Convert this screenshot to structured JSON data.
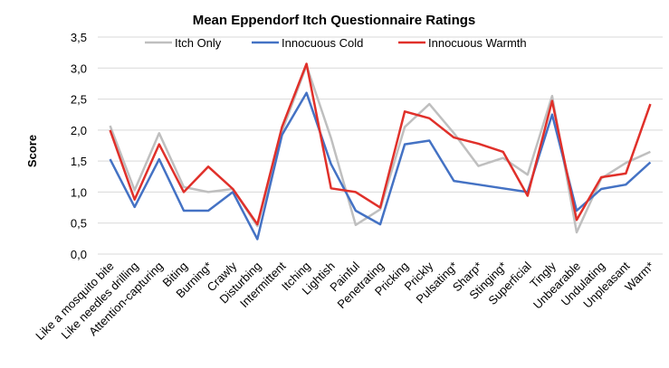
{
  "chart_data": {
    "type": "line",
    "title": "Mean Eppendorf Itch Questionnaire Ratings",
    "xlabel": "",
    "ylabel": "Score",
    "ylim": [
      0,
      3.5
    ],
    "yticks": [
      "0,0",
      "0,5",
      "1,0",
      "1,5",
      "2,0",
      "2,5",
      "3,0",
      "3,5"
    ],
    "ytick_values": [
      0,
      0.5,
      1,
      1.5,
      2,
      2.5,
      3,
      3.5
    ],
    "grid": true,
    "legend_position": "top",
    "categories": [
      "Like a mosquito bite",
      "Like needles drilling",
      "Attention-capturing",
      "Biting",
      "Burning*",
      "Crawly",
      "Disturbing",
      "Intermittent",
      "Itching",
      "Lightish",
      "Painful",
      "Penetrating",
      "Pricking",
      "Prickly",
      "Pulsating*",
      "Sharp*",
      "Stinging*",
      "Superficial",
      "Tingly",
      "Unbearable",
      "Undulating",
      "Unpleasant",
      "Warm*"
    ],
    "series": [
      {
        "name": "Itch Only",
        "color": "#bfbfbf",
        "values": [
          2.07,
          1.03,
          1.95,
          1.08,
          1.0,
          1.05,
          0.45,
          1.98,
          3.04,
          1.87,
          0.47,
          0.72,
          2.05,
          2.42,
          1.95,
          1.42,
          1.55,
          1.28,
          2.55,
          0.35,
          1.22,
          1.47,
          1.65
        ]
      },
      {
        "name": "Innocuous Cold",
        "color": "#4472c4",
        "values": [
          1.53,
          0.76,
          1.53,
          0.7,
          0.7,
          1.0,
          0.24,
          1.92,
          2.6,
          1.45,
          0.7,
          0.48,
          1.77,
          1.83,
          1.18,
          1.12,
          1.06,
          1.0,
          2.25,
          0.7,
          1.05,
          1.12,
          1.48
        ]
      },
      {
        "name": "Innocuous Warmth",
        "color": "#e0302a",
        "values": [
          2.0,
          0.88,
          1.77,
          1.0,
          1.41,
          1.05,
          0.48,
          2.05,
          3.07,
          1.06,
          1.0,
          0.75,
          2.3,
          2.19,
          1.88,
          1.78,
          1.65,
          0.94,
          2.47,
          0.55,
          1.24,
          1.3,
          2.42
        ]
      }
    ]
  }
}
